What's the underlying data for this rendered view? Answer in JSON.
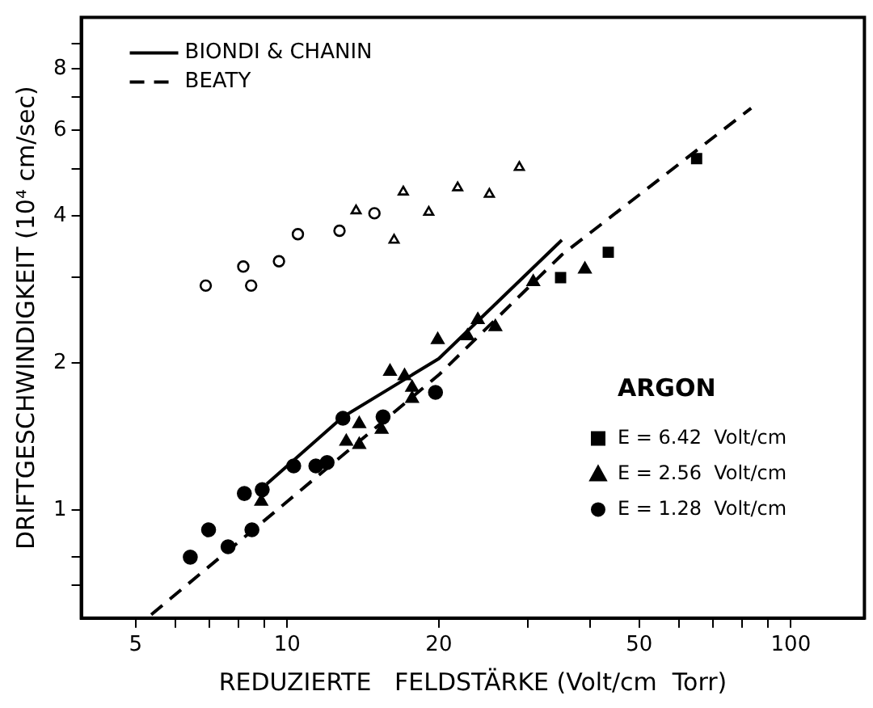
{
  "chart_data": {
    "type": "scatter",
    "xlabel": "REDUZIERTE   FELDSTÄRKE (Volt/cm  Torr)",
    "ylabel": "DRIFTGESCHWINDIGKEIT (10⁴ cm/sec)",
    "log": "xy",
    "grid": false,
    "legend": "top left",
    "legend_title": "ARGON",
    "xlim": [
      3.9,
      140
    ],
    "ylim": [
      0.6,
      10.2
    ],
    "xticks": [
      5,
      {
        "value": 6,
        "label": null
      },
      {
        "value": 7,
        "label": null
      },
      {
        "value": 8,
        "label": null
      },
      {
        "value": 9,
        "label": null
      },
      10,
      20,
      {
        "value": 30,
        "label": null
      },
      {
        "value": 40,
        "label": null
      },
      50,
      {
        "value": 60,
        "label": null
      },
      {
        "value": 70,
        "label": null
      },
      {
        "value": 80,
        "label": null
      },
      {
        "value": 90,
        "label": null
      },
      100
    ],
    "yticks": [
      {
        "value": 0.7,
        "label": null
      },
      {
        "value": 0.8,
        "label": null
      },
      1,
      2,
      {
        "value": 3,
        "label": null
      },
      4,
      {
        "value": 5,
        "label": null
      },
      6,
      {
        "value": 7,
        "label": null
      },
      8,
      {
        "value": 9,
        "label": null
      }
    ],
    "series": [
      {
        "name": "BIONDI & CHANIN",
        "type": "line",
        "line_style": "solid",
        "marker": "none",
        "color": "#000000",
        "x": [
          9.11,
          12.9,
          20,
          35.1
        ],
        "values": [
          1.13,
          1.55,
          2.04,
          3.57
        ]
      },
      {
        "name": "BEATY",
        "type": "line",
        "line_style": "dashed",
        "marker": "none",
        "color": "#000000",
        "x": [
          5.37,
          10,
          20,
          35.1,
          83.4
        ],
        "values": [
          0.61,
          1.04,
          1.89,
          3.33,
          6.65
        ]
      },
      {
        "name": "E = 6.42  Volt/cm",
        "marker": "square",
        "color": "#000000",
        "x": [
          34.9,
          43.4,
          65.0
        ],
        "values": [
          2.99,
          3.37,
          5.24
        ]
      },
      {
        "name": "E = 2.56  Volt/cm",
        "marker": "triangle",
        "color": "#000000",
        "x": [
          30.8,
          39.0,
          16.0,
          17.1,
          17.7,
          17.7,
          19.9,
          22.8,
          23.9,
          25.9,
          13.1,
          13.9,
          13.9,
          15.4,
          8.88
        ],
        "values": [
          2.93,
          3.11,
          1.92,
          1.88,
          1.78,
          1.69,
          2.23,
          2.27,
          2.45,
          2.37,
          1.38,
          1.5,
          1.36,
          1.46,
          1.04
        ]
      },
      {
        "name": "E = 1.28  Volt/cm",
        "marker": "circle",
        "color": "#000000",
        "x": [
          6.42,
          6.98,
          7.63,
          8.22,
          8.51,
          8.92,
          10.3,
          11.4,
          12.0,
          12.9,
          15.5,
          19.7
        ],
        "values": [
          0.8,
          0.91,
          0.84,
          1.08,
          0.91,
          1.1,
          1.23,
          1.23,
          1.25,
          1.54,
          1.55,
          1.74
        ]
      },
      {
        "marker": "circle",
        "color": "#ffffff",
        "x": [
          6.89,
          8.18,
          8.48,
          9.63,
          10.5,
          12.7,
          14.9
        ],
        "values": [
          2.88,
          3.15,
          2.88,
          3.23,
          3.67,
          3.73,
          4.05
        ]
      },
      {
        "marker": "triangle",
        "color": "#ffffff",
        "x": [
          13.7,
          16.3,
          17.0,
          19.1,
          21.8,
          25.2,
          28.9
        ],
        "values": [
          4.1,
          3.57,
          4.48,
          4.07,
          4.57,
          4.43,
          5.03
        ]
      }
    ]
  }
}
